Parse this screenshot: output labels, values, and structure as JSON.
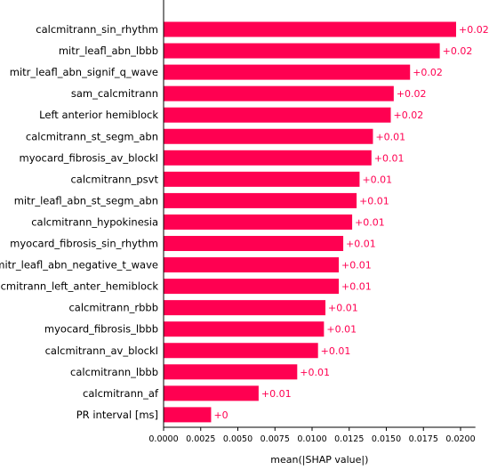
{
  "chart_data": {
    "type": "bar",
    "orientation": "horizontal",
    "xlabel": "mean(|SHAP value|)",
    "ylabel": "",
    "title": "",
    "xlim": [
      0,
      0.021
    ],
    "xticks": [
      0.0,
      0.0025,
      0.005,
      0.0075,
      0.01,
      0.0125,
      0.015,
      0.0175,
      0.02
    ],
    "xtick_labels": [
      "0.0000",
      "0.0025",
      "0.0050",
      "0.0075",
      "0.0100",
      "0.0125",
      "0.0150",
      "0.0175",
      "0.0200"
    ],
    "bar_color": "#ff0051",
    "value_label_color": "#ff0051",
    "grid": false,
    "categories": [
      "calcmitrann_sin_rhythm",
      "mitr_leafl_abn_lbbb",
      "mitr_leafl_abn_signif_q_wave",
      "sam_calcmitrann",
      "Left anterior hemiblock",
      "calcmitrann_st_segm_abn",
      "myocard_fibrosis_av_blockI",
      "calcmitrann_psvt",
      "mitr_leafl_abn_st_segm_abn",
      "calcmitrann_hypokinesia",
      "myocard_fibrosis_sin_rhythm",
      "mitr_leafl_abn_negative_t_wave",
      "calcmitrann_left_anter_hemiblock",
      "calcmitrann_rbbb",
      "myocard_fibrosis_lbbb",
      "calcmitrann_av_blockI",
      "calcmitrann_lbbb",
      "calcmitrann_af",
      "PR interval [ms]"
    ],
    "values": [
      0.0197,
      0.0186,
      0.0166,
      0.0155,
      0.0153,
      0.0141,
      0.014,
      0.0132,
      0.013,
      0.0127,
      0.0121,
      0.0118,
      0.0118,
      0.0109,
      0.0108,
      0.0104,
      0.009,
      0.0064,
      0.0032
    ],
    "value_labels": [
      "+0.02",
      "+0.02",
      "+0.02",
      "+0.02",
      "+0.02",
      "+0.01",
      "+0.01",
      "+0.01",
      "+0.01",
      "+0.01",
      "+0.01",
      "+0.01",
      "+0.01",
      "+0.01",
      "+0.01",
      "+0.01",
      "+0.01",
      "+0.01",
      "+0"
    ]
  }
}
